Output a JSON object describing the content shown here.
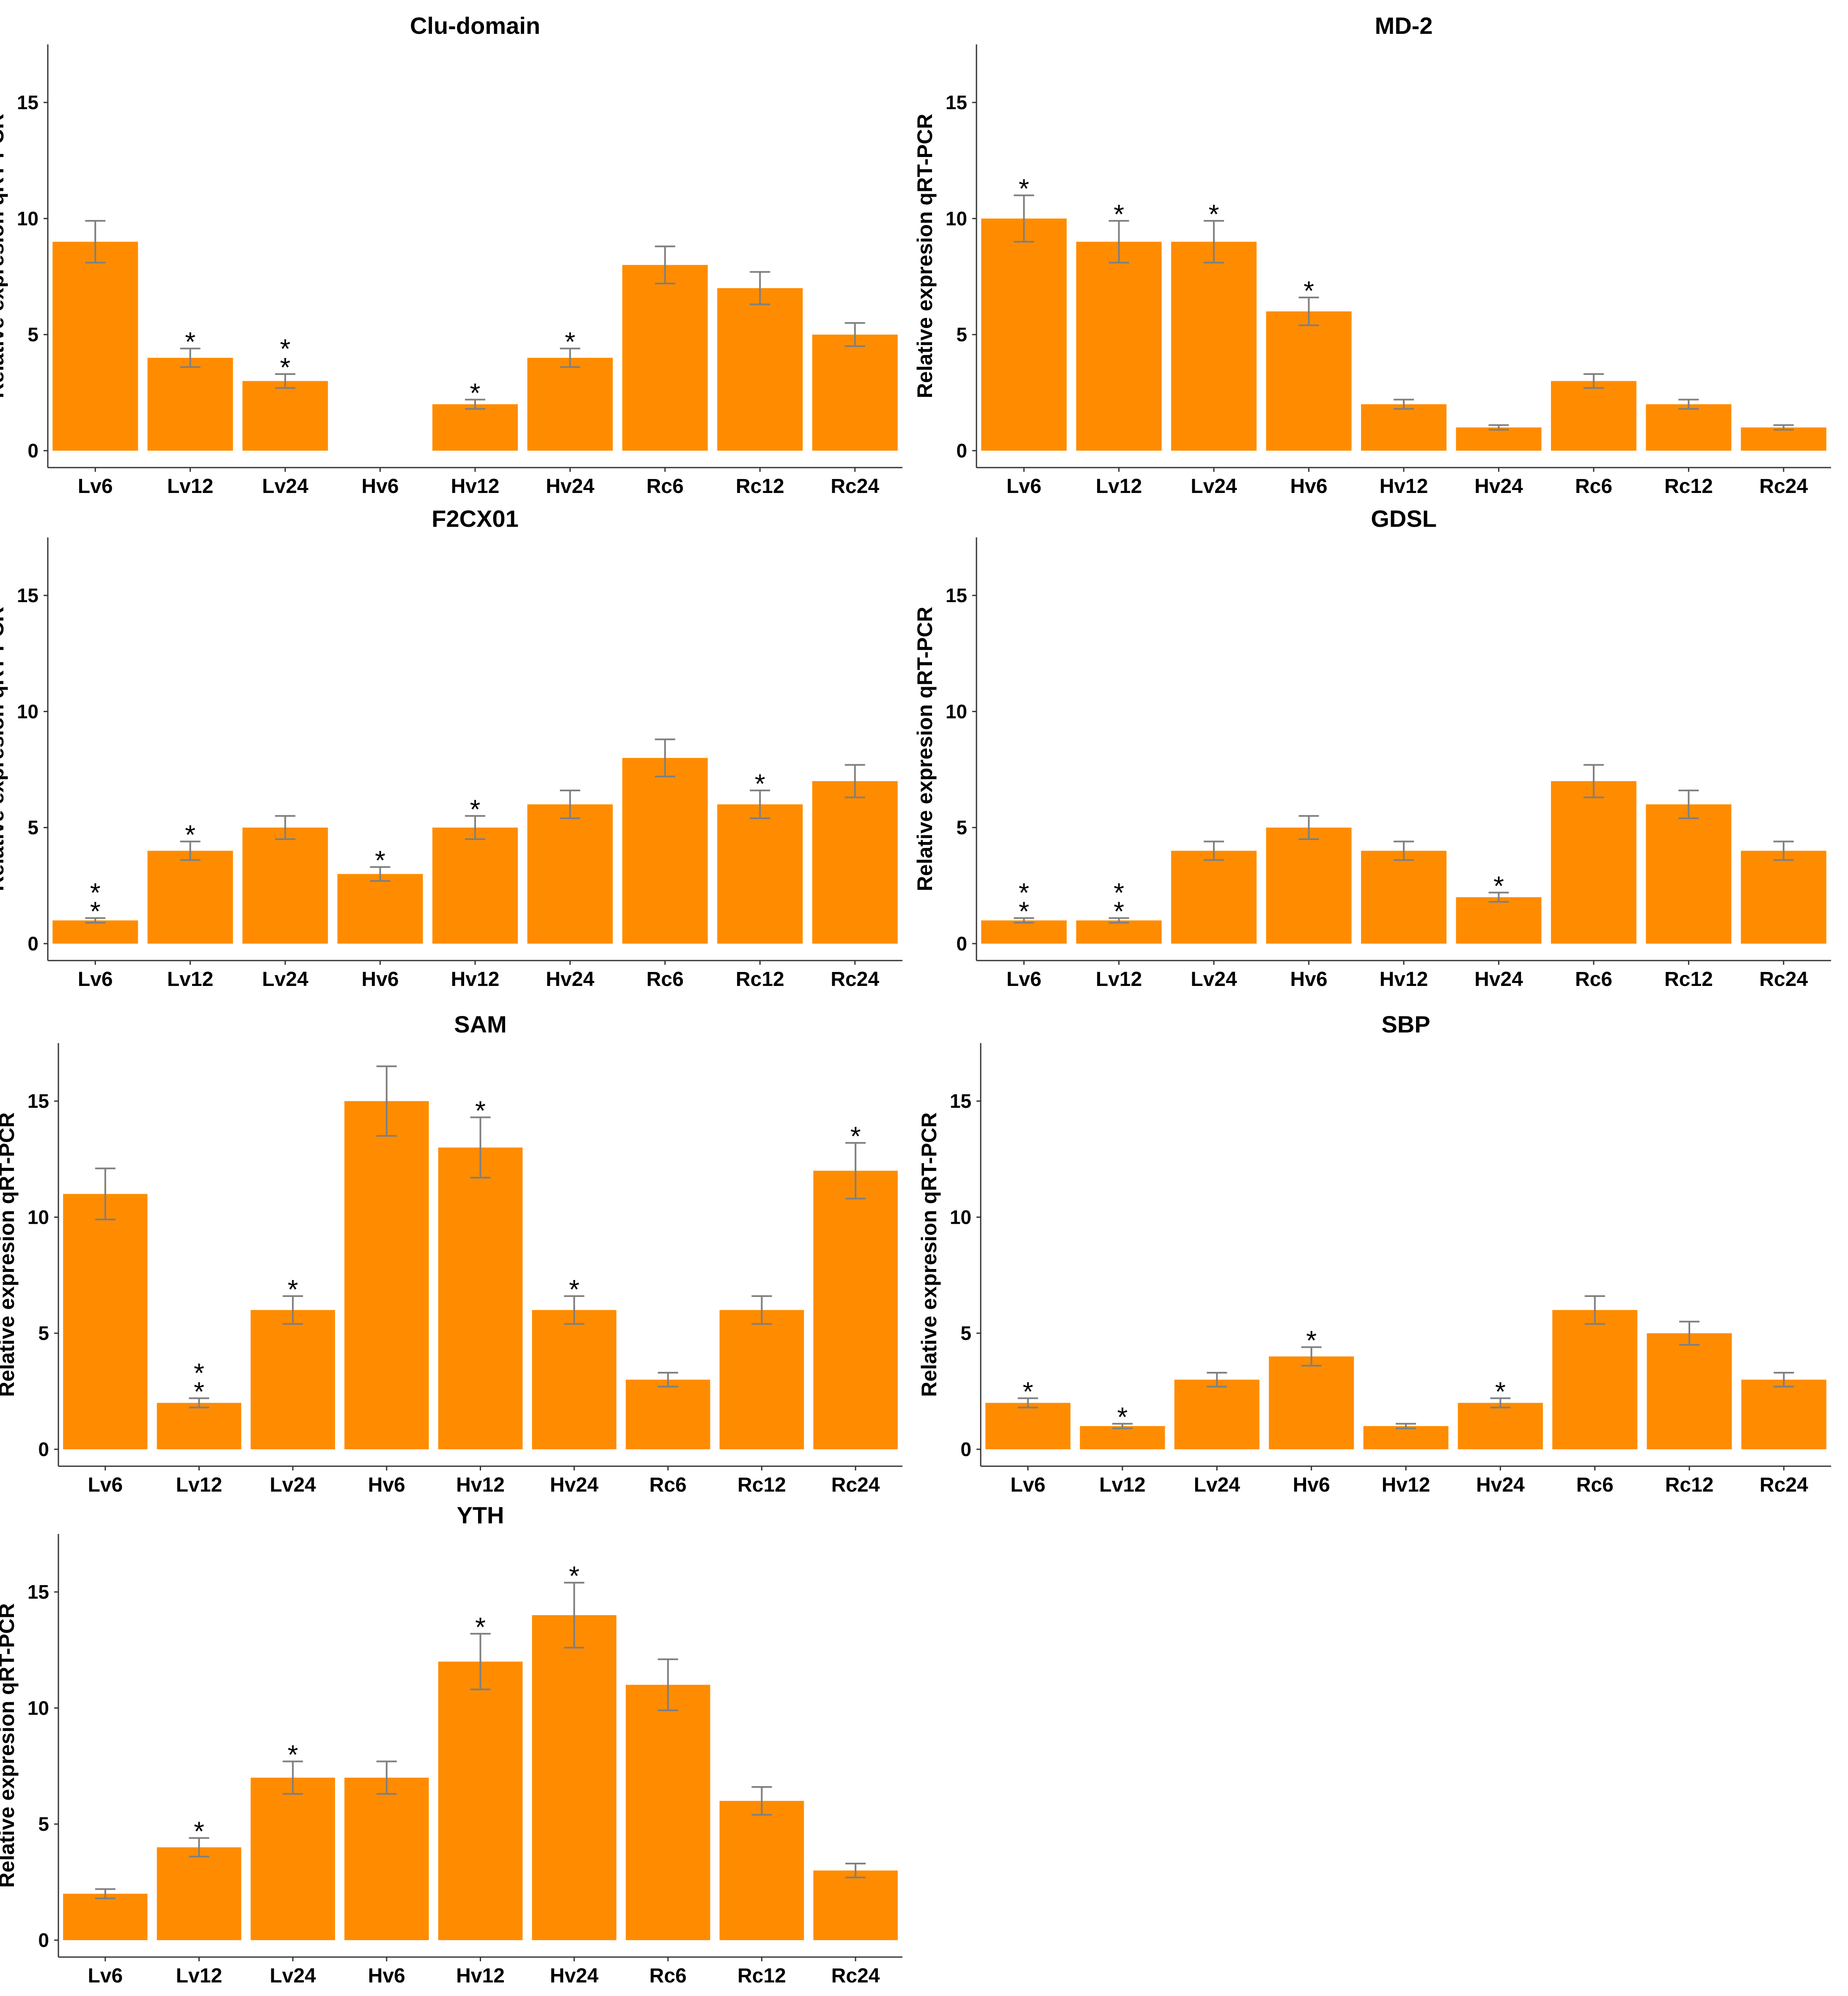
{
  "chart_data": [
    {
      "type": "bar",
      "title": "Clu-domain",
      "ylabel": "Relative expresion qRT-PCR",
      "xlabel": "",
      "categories": [
        "Lv6",
        "Lv12",
        "Lv24",
        "Hv6",
        "Hv12",
        "Hv24",
        "Rc6",
        "Rc12",
        "Rc24"
      ],
      "values": [
        9,
        4,
        3,
        0,
        2,
        4,
        8,
        7,
        5
      ],
      "errors": [
        0.9,
        0.4,
        0.3,
        0,
        0.2,
        0.4,
        0.8,
        0.7,
        0.5
      ],
      "significance": [
        "",
        "*",
        "**",
        "",
        "*",
        "*",
        "",
        "",
        ""
      ],
      "ylim": [
        0,
        17.5
      ],
      "yticks": [
        0,
        5,
        10,
        15
      ],
      "bar_color": "#FF8C00",
      "error_color": "#7F7F7F"
    },
    {
      "type": "bar",
      "title": "MD-2",
      "ylabel": "Relative expresion qRT-PCR",
      "xlabel": "",
      "categories": [
        "Lv6",
        "Lv12",
        "Lv24",
        "Hv6",
        "Hv12",
        "Hv24",
        "Rc6",
        "Rc12",
        "Rc24"
      ],
      "values": [
        10,
        9,
        9,
        6,
        2,
        1,
        3,
        2,
        1
      ],
      "errors": [
        1.0,
        0.9,
        0.9,
        0.6,
        0.2,
        0.1,
        0.3,
        0.2,
        0.1
      ],
      "significance": [
        "*",
        "*",
        "*",
        "*",
        "",
        "",
        "",
        "",
        ""
      ],
      "ylim": [
        0,
        17.5
      ],
      "yticks": [
        0,
        5,
        10,
        15
      ],
      "bar_color": "#FF8C00",
      "error_color": "#7F7F7F"
    },
    {
      "type": "bar",
      "title": "F2CX01",
      "ylabel": "Relative expresion qRT-PCR",
      "xlabel": "",
      "categories": [
        "Lv6",
        "Lv12",
        "Lv24",
        "Hv6",
        "Hv12",
        "Hv24",
        "Rc6",
        "Rc12",
        "Rc24"
      ],
      "values": [
        1,
        4,
        5,
        3,
        5,
        6,
        8,
        6,
        7
      ],
      "errors": [
        0.1,
        0.4,
        0.5,
        0.3,
        0.5,
        0.6,
        0.8,
        0.6,
        0.7
      ],
      "significance": [
        "**",
        "*",
        "",
        "*",
        "*",
        "",
        "",
        "*",
        ""
      ],
      "ylim": [
        0,
        17.5
      ],
      "yticks": [
        0,
        5,
        10,
        15
      ],
      "bar_color": "#FF8C00",
      "error_color": "#7F7F7F"
    },
    {
      "type": "bar",
      "title": "GDSL",
      "ylabel": "Relative expresion qRT-PCR",
      "xlabel": "",
      "categories": [
        "Lv6",
        "Lv12",
        "Lv24",
        "Hv6",
        "Hv12",
        "Hv24",
        "Rc6",
        "Rc12",
        "Rc24"
      ],
      "values": [
        1,
        1,
        4,
        5,
        4,
        2,
        7,
        6,
        4
      ],
      "errors": [
        0.1,
        0.1,
        0.4,
        0.5,
        0.4,
        0.2,
        0.7,
        0.6,
        0.4
      ],
      "significance": [
        "**",
        "**",
        "",
        "",
        "",
        "*",
        "",
        "",
        ""
      ],
      "ylim": [
        0,
        17.5
      ],
      "yticks": [
        0,
        5,
        10,
        15
      ],
      "bar_color": "#FF8C00",
      "error_color": "#7F7F7F"
    },
    {
      "type": "bar",
      "title": "SAM",
      "ylabel": "Relative expresion qRT-PCR",
      "xlabel": "",
      "categories": [
        "Lv6",
        "Lv12",
        "Lv24",
        "Hv6",
        "Hv12",
        "Hv24",
        "Rc6",
        "Rc12",
        "Rc24"
      ],
      "values": [
        11,
        2,
        6,
        15,
        13,
        6,
        3,
        6,
        12
      ],
      "errors": [
        1.1,
        0.2,
        0.6,
        1.5,
        1.3,
        0.6,
        0.3,
        0.6,
        1.2
      ],
      "significance": [
        "",
        "**",
        "*",
        "",
        "*",
        "*",
        "",
        "",
        "*"
      ],
      "ylim": [
        0,
        17.5
      ],
      "yticks": [
        0,
        5,
        10,
        15
      ],
      "bar_color": "#FF8C00",
      "error_color": "#7F7F7F"
    },
    {
      "type": "bar",
      "title": "SBP",
      "ylabel": "Relative expresion qRT-PCR",
      "xlabel": "",
      "categories": [
        "Lv6",
        "Lv12",
        "Lv24",
        "Hv6",
        "Hv12",
        "Hv24",
        "Rc6",
        "Rc12",
        "Rc24"
      ],
      "values": [
        2,
        1,
        3,
        4,
        1,
        2,
        6,
        5,
        3
      ],
      "errors": [
        0.2,
        0.1,
        0.3,
        0.4,
        0.1,
        0.2,
        0.6,
        0.5,
        0.3
      ],
      "significance": [
        "*",
        "*",
        "",
        "*",
        "",
        "*",
        "",
        "",
        ""
      ],
      "ylim": [
        0,
        17.5
      ],
      "yticks": [
        0,
        5,
        10,
        15
      ],
      "bar_color": "#FF8C00",
      "error_color": "#7F7F7F"
    },
    {
      "type": "bar",
      "title": "YTH",
      "ylabel": "Relative expresion qRT-PCR",
      "xlabel": "",
      "categories": [
        "Lv6",
        "Lv12",
        "Lv24",
        "Hv6",
        "Hv12",
        "Hv24",
        "Rc6",
        "Rc12",
        "Rc24"
      ],
      "values": [
        2,
        4,
        7,
        7,
        12,
        14,
        11,
        6,
        3
      ],
      "errors": [
        0.2,
        0.4,
        0.7,
        0.7,
        1.2,
        1.4,
        1.1,
        0.6,
        0.3
      ],
      "significance": [
        "",
        "*",
        "*",
        "",
        "*",
        "*",
        "",
        "",
        ""
      ],
      "ylim": [
        0,
        17.5
      ],
      "yticks": [
        0,
        5,
        10,
        15
      ],
      "bar_color": "#FF8C00",
      "error_color": "#7F7F7F"
    }
  ]
}
